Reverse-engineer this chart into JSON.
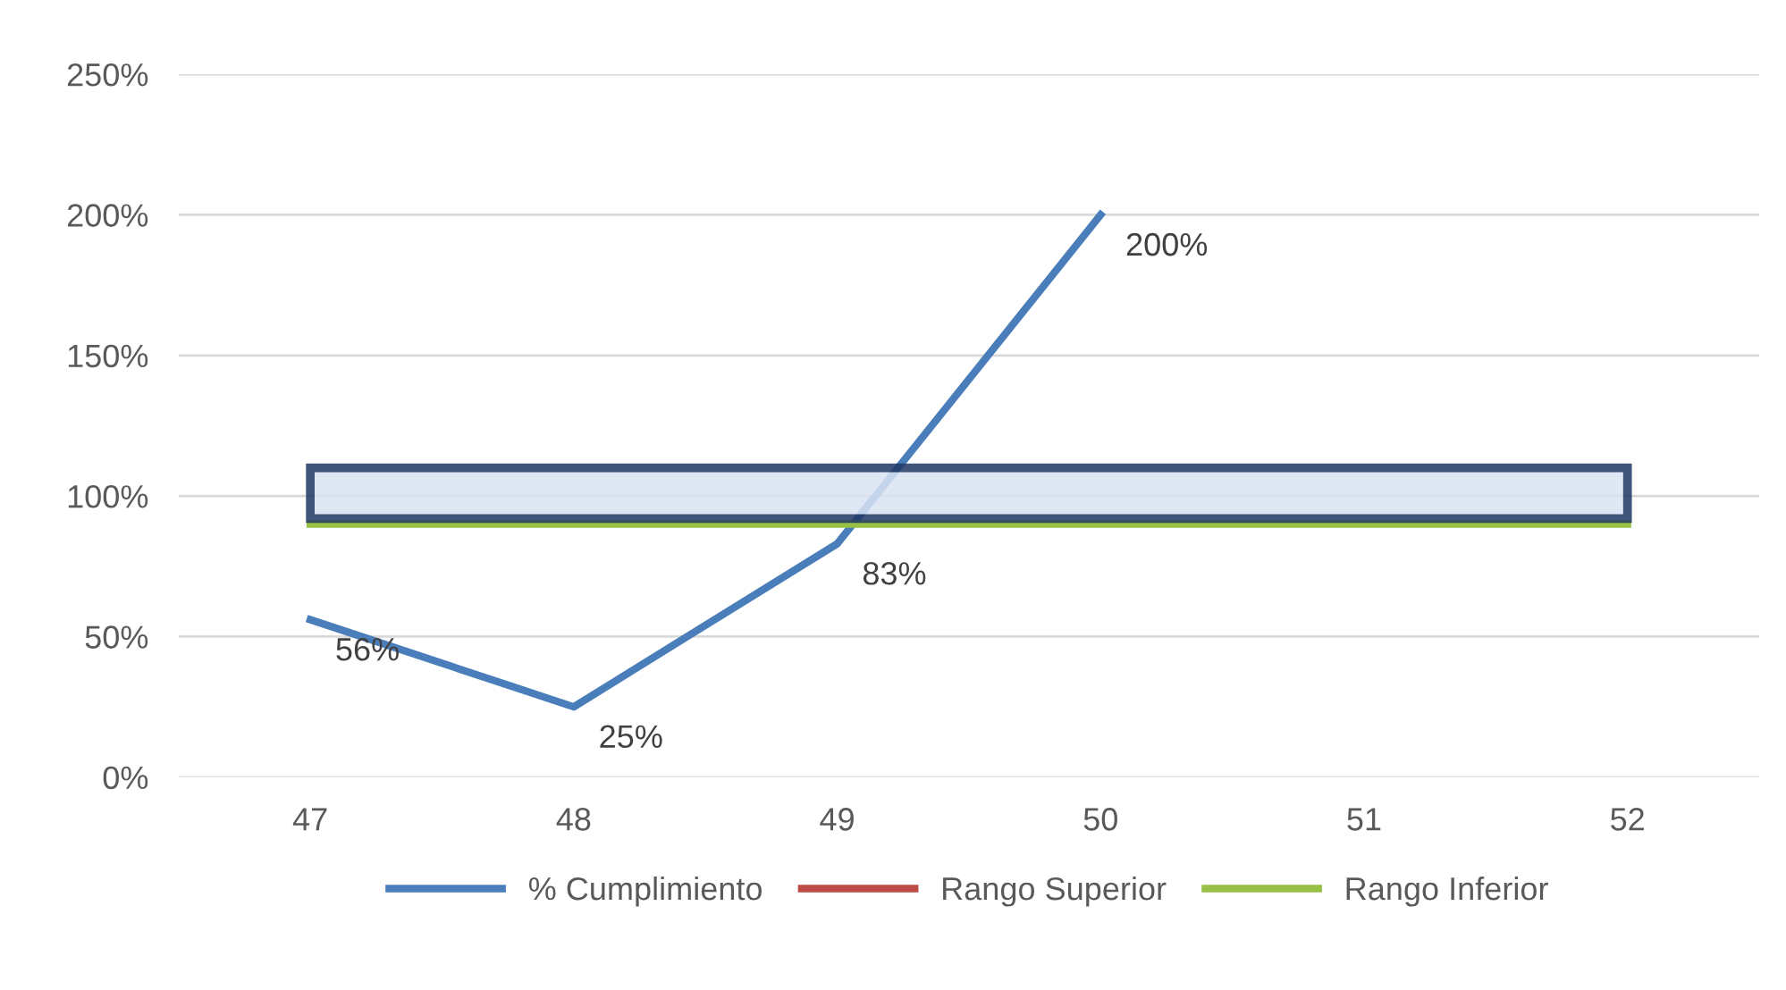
{
  "chart_data": {
    "type": "line",
    "categories": [
      "47",
      "48",
      "49",
      "50",
      "51",
      "52"
    ],
    "series": [
      {
        "name": "% Cumplimiento",
        "color": "#4a7ebb",
        "values": [
          56,
          25,
          83,
          200,
          null,
          null
        ],
        "value_labels": [
          "56%",
          "25%",
          "83%",
          "200%",
          null,
          null
        ]
      },
      {
        "name": "Rango Superior",
        "color": "#be4b48",
        "values": [
          null,
          null,
          null,
          null,
          null,
          null
        ]
      },
      {
        "name": "Rango Inferior",
        "color": "#98c046",
        "values": [
          90,
          90,
          90,
          90,
          90,
          90
        ]
      }
    ],
    "ylim": [
      0,
      250
    ],
    "yticks": [
      {
        "value": 0,
        "label": "0%"
      },
      {
        "value": 50,
        "label": "50%"
      },
      {
        "value": 100,
        "label": "100%"
      },
      {
        "value": 150,
        "label": "150%"
      },
      {
        "value": 200,
        "label": "200%"
      },
      {
        "value": 250,
        "label": "250%"
      }
    ],
    "bands": [
      {
        "axis": "y",
        "from": 92,
        "to": 110,
        "color": "#dae3f3"
      }
    ],
    "grid": "y",
    "legend": "bottom",
    "marker": "none",
    "line_style": "solid"
  }
}
